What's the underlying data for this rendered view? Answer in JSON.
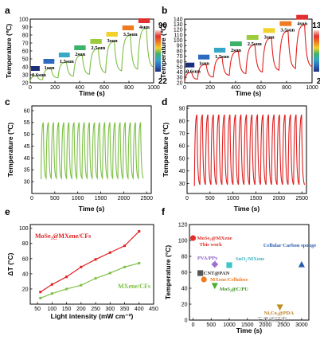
{
  "chart_data": [
    {
      "panel": "a",
      "type": "line",
      "color": "#7cc043",
      "x_label": "Time (s)",
      "y_label": "Temperature (℃)",
      "xlim": [
        0,
        1000
      ],
      "ylim": [
        20,
        100
      ],
      "x_ticks": [
        "0",
        "200",
        "400",
        "600",
        "800",
        "1000"
      ],
      "y_ticks": [
        "20",
        "30",
        "40",
        "50",
        "60",
        "70",
        "80",
        "90",
        "100"
      ],
      "steps": [
        {
          "label": "0.6sun",
          "t": [
            0,
            100
          ],
          "peak": 29
        },
        {
          "label": "1sun",
          "t": [
            100,
            225
          ],
          "peak": 38
        },
        {
          "label": "1.5sun",
          "t": [
            225,
            350
          ],
          "peak": 46
        },
        {
          "label": "2sun",
          "t": [
            350,
            480
          ],
          "peak": 55
        },
        {
          "label": "2.5sun",
          "t": [
            480,
            610
          ],
          "peak": 63
        },
        {
          "label": "3sun",
          "t": [
            610,
            740
          ],
          "peak": 72
        },
        {
          "label": "3.5sun",
          "t": [
            740,
            870
          ],
          "peak": 80
        },
        {
          "label": "4sun",
          "t": [
            870,
            1000
          ],
          "peak": 89
        }
      ],
      "colorbar_max": "90",
      "colorbar_min": "22"
    },
    {
      "panel": "b",
      "type": "line",
      "color": "#e02020",
      "x_label": "Time (s)",
      "y_label": "Temperature (℃)",
      "xlim": [
        0,
        1000
      ],
      "ylim": [
        20,
        140
      ],
      "x_ticks": [
        "0",
        "200",
        "400",
        "600",
        "800",
        "1000"
      ],
      "y_ticks": [
        "20",
        "30",
        "40",
        "50",
        "60",
        "70",
        "80",
        "90",
        "100",
        "110",
        "120",
        "130",
        "140"
      ],
      "steps": [
        {
          "label": "0.6sun",
          "t": [
            0,
            100
          ],
          "peak": 40
        },
        {
          "label": "1sun",
          "t": [
            100,
            225
          ],
          "peak": 55
        },
        {
          "label": "1.5sun",
          "t": [
            225,
            350
          ],
          "peak": 68
        },
        {
          "label": "2sun",
          "t": [
            350,
            480
          ],
          "peak": 80
        },
        {
          "label": "2.5sun",
          "t": [
            480,
            610
          ],
          "peak": 92
        },
        {
          "label": "3sun",
          "t": [
            610,
            740
          ],
          "peak": 105
        },
        {
          "label": "3.5sun",
          "t": [
            740,
            870
          ],
          "peak": 118
        },
        {
          "label": "4sun",
          "t": [
            870,
            1000
          ],
          "peak": 130
        }
      ],
      "colorbar_max": "130",
      "colorbar_min": "22"
    },
    {
      "panel": "c",
      "type": "line",
      "color": "#7cc043",
      "x_label": "Time (s)",
      "y_label": "Temperature (℃)",
      "xlim": [
        0,
        2600
      ],
      "ylim": [
        25,
        62
      ],
      "x_ticks": [
        "0",
        "500",
        "1000",
        "1500",
        "2000",
        "2500"
      ],
      "y_ticks": [
        "30",
        "35",
        "40",
        "45",
        "50",
        "55",
        "60"
      ],
      "cycles": 20,
      "t_start": 200,
      "t_end": 2430,
      "high": 55,
      "low": 31
    },
    {
      "panel": "d",
      "type": "line",
      "color": "#e02020",
      "x_label": "Time (s)",
      "y_label": "Temperature (℃)",
      "xlim": [
        0,
        2600
      ],
      "ylim": [
        22,
        92
      ],
      "x_ticks": [
        "0",
        "500",
        "1000",
        "1500",
        "2000",
        "2500"
      ],
      "y_ticks": [
        "30",
        "40",
        "50",
        "60",
        "70",
        "80",
        "90"
      ],
      "cycles": 20,
      "t_start": 160,
      "t_end": 2560,
      "high": 85,
      "low": 28
    },
    {
      "panel": "e",
      "type": "line",
      "x_label": "Light intensity (mW cm⁻²)",
      "y_label": "ΔT (°C)",
      "xlim": [
        25,
        450
      ],
      "ylim": [
        0,
        105
      ],
      "x_ticks": [
        "50",
        "100",
        "150",
        "200",
        "250",
        "300",
        "350",
        "400",
        "450"
      ],
      "y_ticks": [
        "20",
        "40",
        "60",
        "80",
        "100"
      ],
      "series": [
        {
          "name": "MoSe₂@MXene/CFs",
          "color": "#e02020",
          "x": [
            60,
            100,
            150,
            200,
            250,
            300,
            350,
            400
          ],
          "y": [
            16,
            26,
            36,
            49,
            59,
            68,
            77,
            96
          ]
        },
        {
          "name": "MXene/CFs",
          "color": "#7cc043",
          "x": [
            60,
            100,
            150,
            200,
            250,
            300,
            350,
            400
          ],
          "y": [
            8,
            14,
            20,
            25,
            34,
            41,
            49,
            54
          ]
        }
      ]
    },
    {
      "panel": "f",
      "type": "scatter",
      "x_label": "Time (s)",
      "y_label": "Temperature (°C)",
      "xlim": [
        -100,
        3200
      ],
      "ylim": [
        0,
        120
      ],
      "x_ticks": [
        "0",
        "500",
        "1000",
        "1500",
        "2000",
        "2500",
        "3000"
      ],
      "y_ticks": [
        "0",
        "20",
        "40",
        "60",
        "80",
        "100",
        "120"
      ],
      "points": [
        {
          "name": "MoSe₂@MXene",
          "x": 0,
          "y": 103,
          "shape": "circle",
          "color": "#e0302a",
          "label_color": "#e0302a"
        },
        {
          "name": "PVA/PPy",
          "x": 600,
          "y": 70,
          "shape": "diamond",
          "color": "#a070d0",
          "label_color": "#8a5bc6"
        },
        {
          "name": "SnO₂/MXene",
          "x": 1000,
          "y": 69,
          "shape": "square",
          "color": "#3cc6c6",
          "label_color": "#35b5c0"
        },
        {
          "name": "Cellular Carbon sponge",
          "x": 3000,
          "y": 70,
          "shape": "triangle",
          "color": "#2a5fb0",
          "label_color": "#2a5fb0"
        },
        {
          "name": "CNT@PAN",
          "x": 200,
          "y": 59,
          "shape": "square",
          "color": "#555555",
          "label_color": "#333333"
        },
        {
          "name": "MXene/Cellulose",
          "x": 300,
          "y": 51,
          "shape": "circle",
          "color": "#f07a20",
          "label_color": "#f07a20"
        },
        {
          "name": "MoS₂@C/PU",
          "x": 600,
          "y": 43,
          "shape": "triangle-down",
          "color": "#4caf2a",
          "label_color": "#3b8f20"
        },
        {
          "name": "Ni,Co₃@PDA",
          "x": 2400,
          "y": 16,
          "shape": "triangle-down",
          "color": "#c09020",
          "label_color": "#c08018"
        }
      ],
      "annotation": "This work",
      "annotation_color": "#e0302a"
    }
  ],
  "watermark": "石墨烯研究"
}
